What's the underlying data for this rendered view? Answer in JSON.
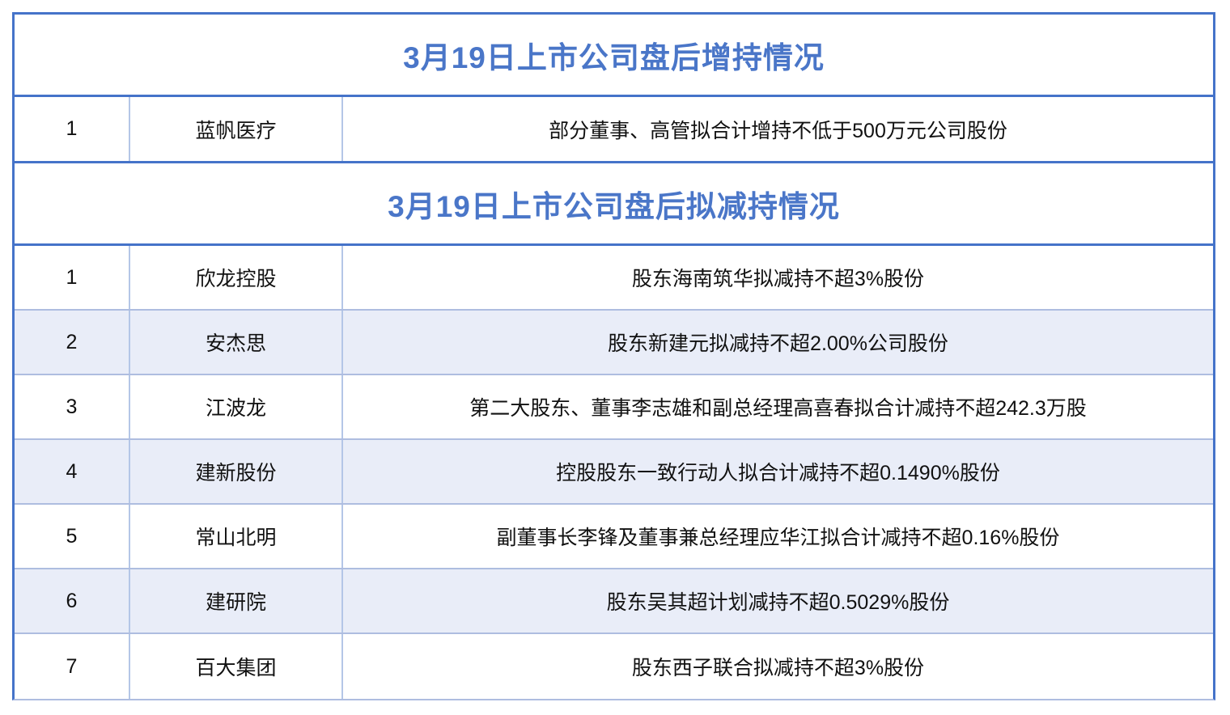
{
  "colors": {
    "title_text": "#4a76c8",
    "outer_border": "#4573c9",
    "inner_border": "#b4c6e7",
    "shaded_row_bg": "#e9edf8",
    "body_text": "#111111"
  },
  "increase_table": {
    "title": "3月19日上市公司盘后增持情况",
    "rows": [
      {
        "index": "1",
        "company": "蓝帆医疗",
        "detail": "部分董事、高管拟合计增持不低于500万元公司股份"
      }
    ]
  },
  "decrease_table": {
    "title": "3月19日上市公司盘后拟减持情况",
    "rows": [
      {
        "index": "1",
        "company": "欣龙控股",
        "detail": "股东海南筑华拟减持不超3%股份"
      },
      {
        "index": "2",
        "company": "安杰思",
        "detail": "股东新建元拟减持不超2.00%公司股份"
      },
      {
        "index": "3",
        "company": "江波龙",
        "detail": "第二大股东、董事李志雄和副总经理高喜春拟合计减持不超242.3万股"
      },
      {
        "index": "4",
        "company": "建新股份",
        "detail": "控股股东一致行动人拟合计减持不超0.1490%股份"
      },
      {
        "index": "5",
        "company": "常山北明",
        "detail": "副董事长李锋及董事兼总经理应华江拟合计减持不超0.16%股份"
      },
      {
        "index": "6",
        "company": "建研院",
        "detail": "股东吴其超计划减持不超0.5029%股份"
      },
      {
        "index": "7",
        "company": "百大集团",
        "detail": "股东西子联合拟减持不超3%股份"
      }
    ]
  }
}
